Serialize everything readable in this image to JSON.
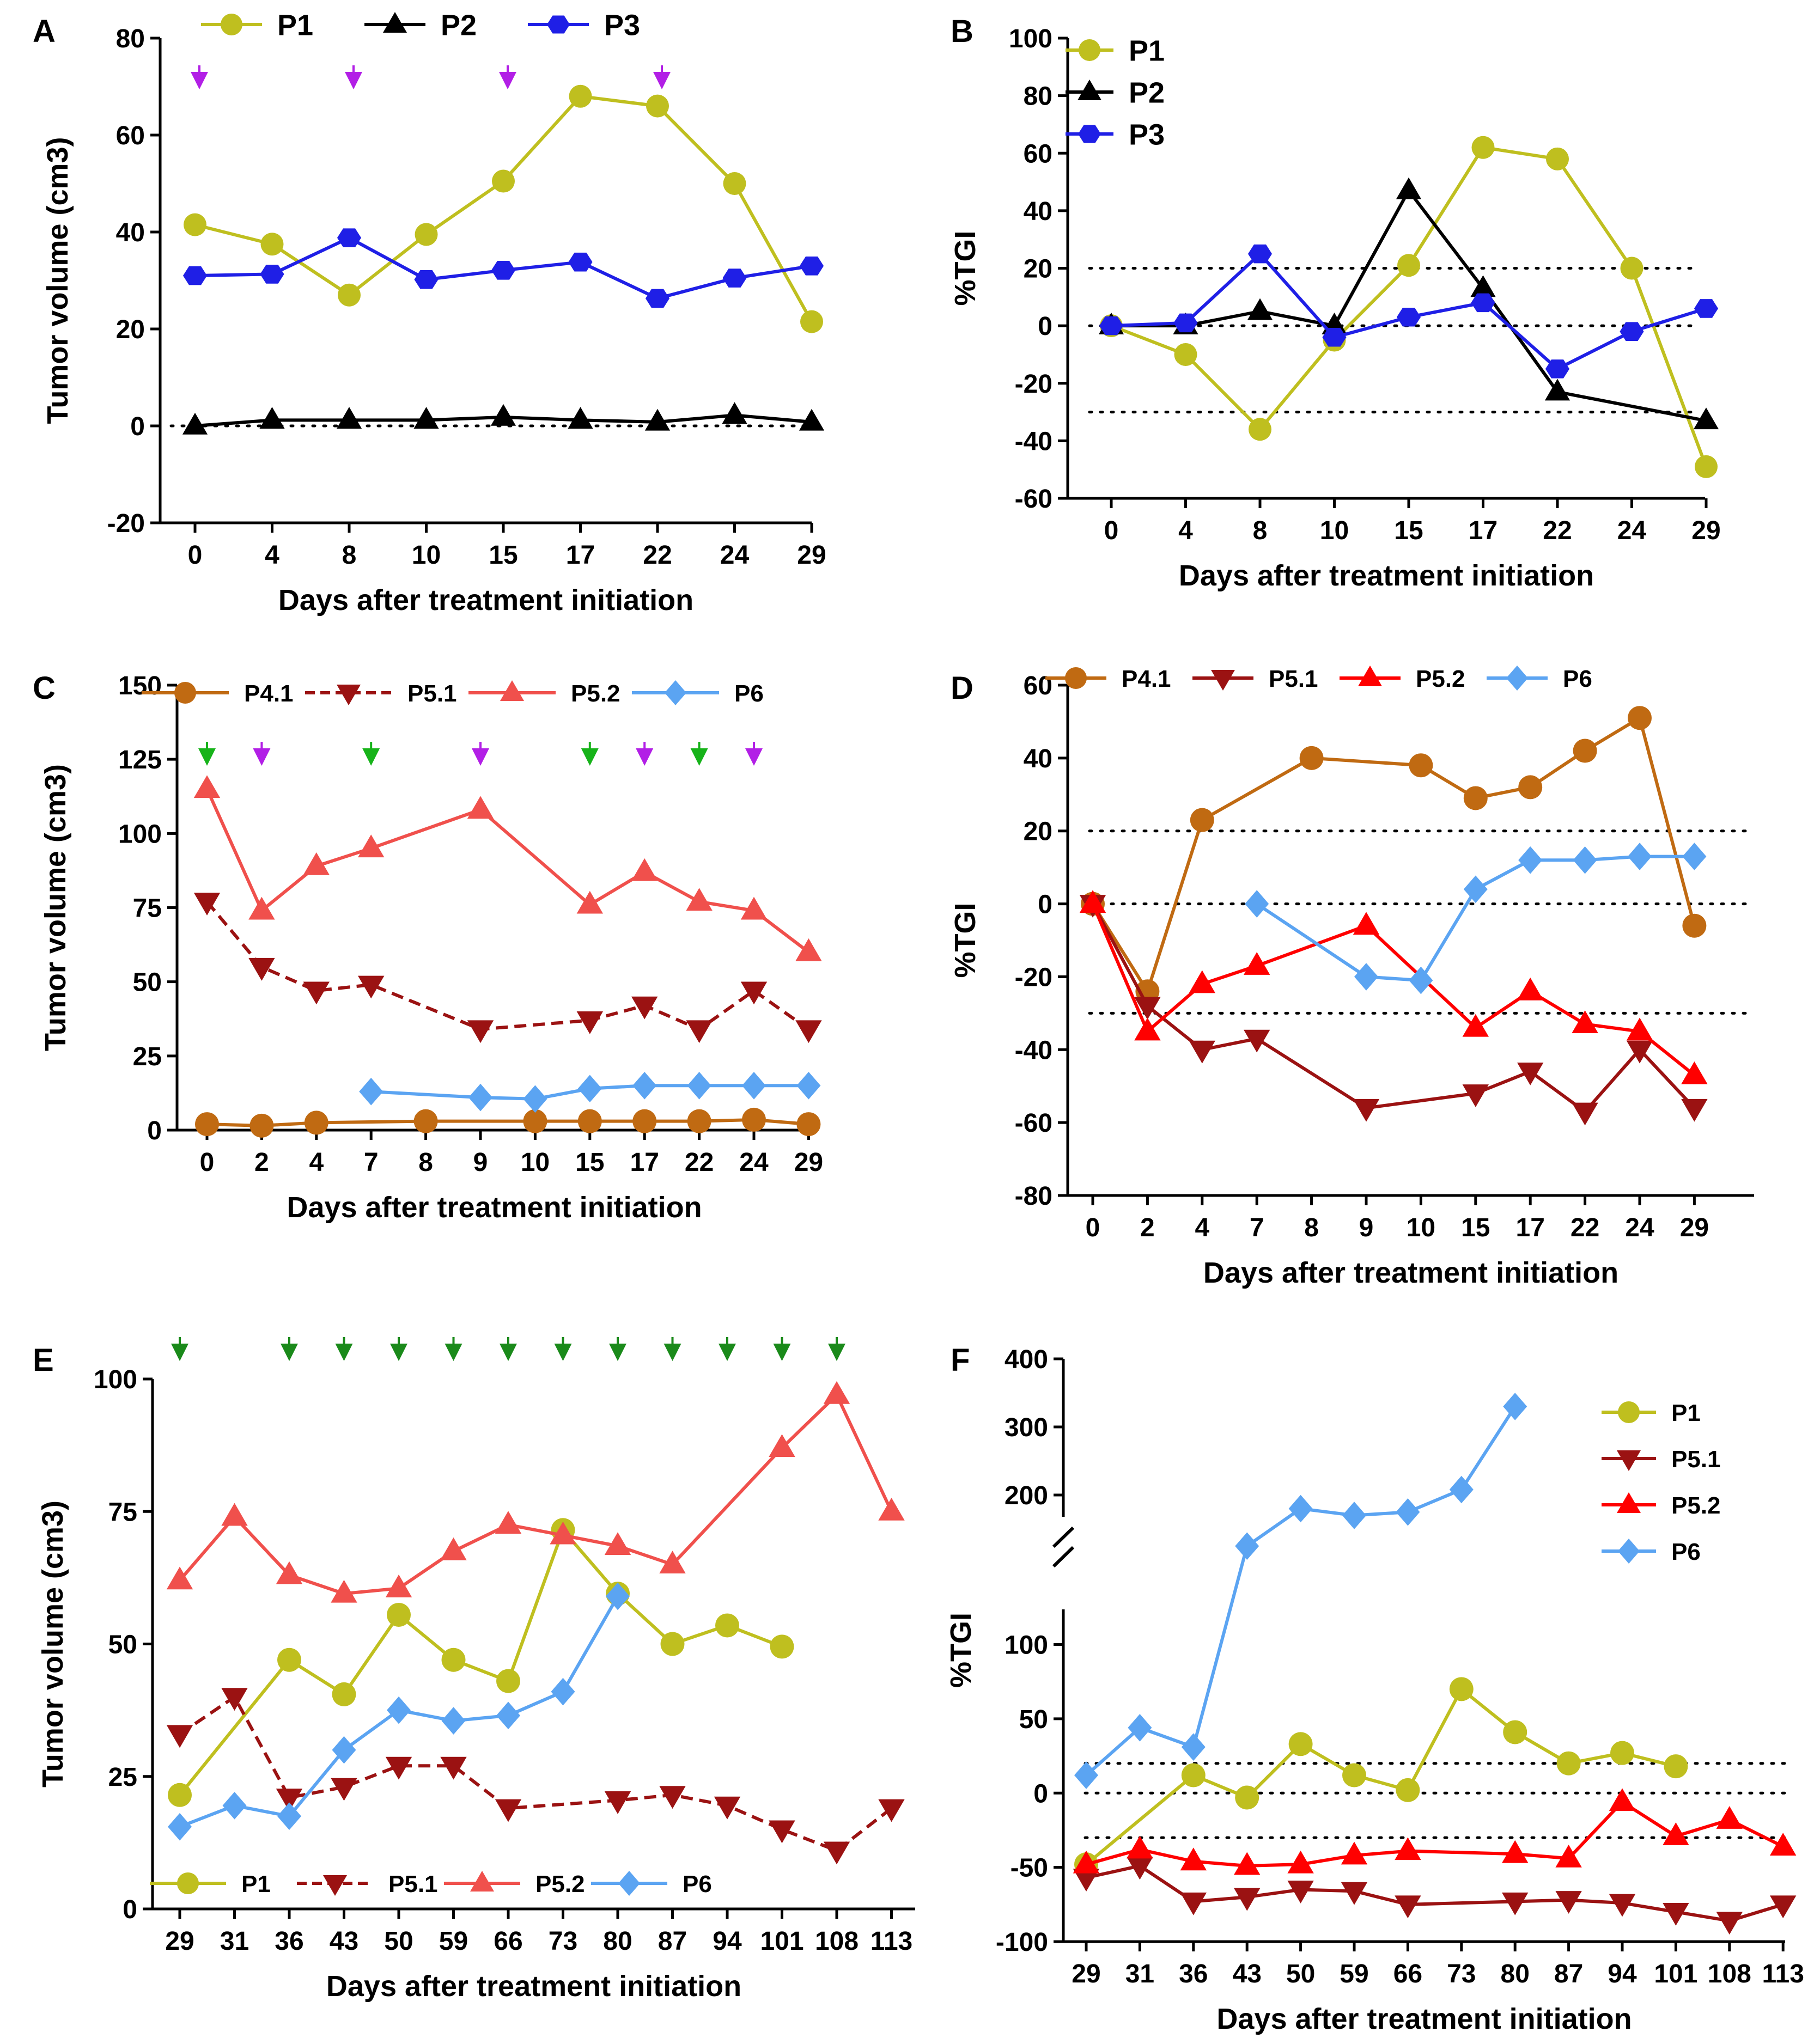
{
  "colors": {
    "P1": "#bfbf1f",
    "P2": "#000000",
    "P3": "#1f1fe6",
    "P4.1": "#c06a12",
    "P5.1": "#9b1212",
    "P5.2": "#f0504c",
    "P5.2_red": "#ff0000",
    "P6": "#5ba4f2",
    "arrow_purple": "#b21fe6",
    "arrow_green": "#17b31a",
    "arrow_darkgreen": "#1a8a1a"
  },
  "chart_data": [
    {
      "panel": "A",
      "type": "line",
      "ylabel": "Tumor volume (cm3)",
      "xlabel": "Days after treatment initiation",
      "categories": [
        "0",
        "4",
        "8",
        "10",
        "15",
        "17",
        "22",
        "24",
        "29"
      ],
      "ylim": [
        -20,
        80
      ],
      "yticks": [
        "-20",
        "0",
        "20",
        "40",
        "60",
        "80"
      ],
      "legend": "top",
      "reference_lines": [
        0
      ],
      "arrows": [
        {
          "category": "0",
          "color": "purple"
        },
        {
          "category": "8",
          "color": "purple"
        },
        {
          "category": "15",
          "color": "purple"
        },
        {
          "category": "22",
          "color": "purple"
        }
      ],
      "series": [
        {
          "name": "P1",
          "marker": "circle",
          "values": [
            41.5,
            37.5,
            27,
            39.5,
            50.5,
            68,
            66,
            50,
            21.5
          ]
        },
        {
          "name": "P2",
          "marker": "triangle",
          "values": [
            0,
            1.2,
            1.2,
            1.2,
            1.8,
            1.2,
            0.8,
            2.2,
            0.8
          ]
        },
        {
          "name": "P3",
          "marker": "hexagon",
          "values": [
            31,
            31.3,
            38.8,
            30.2,
            32.1,
            33.8,
            26.3,
            30.5,
            33
          ]
        }
      ]
    },
    {
      "panel": "B",
      "type": "line",
      "ylabel": "%TGI",
      "xlabel": "Days after treatment initiation",
      "categories": [
        "0",
        "4",
        "8",
        "10",
        "15",
        "17",
        "22",
        "24",
        "29"
      ],
      "ylim": [
        -60,
        100
      ],
      "yticks": [
        "-60",
        "-40",
        "-20",
        "0",
        "20",
        "40",
        "60",
        "80",
        "100"
      ],
      "legend": "top-left",
      "reference_lines": [
        20,
        0,
        -30
      ],
      "series": [
        {
          "name": "P1",
          "marker": "circle",
          "values": [
            0,
            -10,
            -36,
            -5,
            21,
            62,
            58,
            20,
            -49
          ]
        },
        {
          "name": "P2",
          "marker": "triangle",
          "values": [
            0,
            0,
            5,
            0,
            47,
            13,
            -23,
            null,
            -33
          ]
        },
        {
          "name": "P3",
          "marker": "hexagon",
          "values": [
            0,
            1,
            25,
            -4,
            3,
            8,
            -15,
            -2,
            6
          ]
        }
      ]
    },
    {
      "panel": "C",
      "type": "line",
      "ylabel": "Tumor volume (cm3)",
      "xlabel": "Days after treatment initiation",
      "categories": [
        "0",
        "2",
        "4",
        "7",
        "8",
        "9",
        "10",
        "15",
        "17",
        "22",
        "24",
        "29"
      ],
      "ylim": [
        0,
        150
      ],
      "yticks": [
        "0",
        "25",
        "50",
        "75",
        "100",
        "125",
        "150"
      ],
      "legend": "top",
      "reference_lines": [
        0
      ],
      "arrows": [
        {
          "category": "0",
          "color": "green"
        },
        {
          "category": "2",
          "color": "purple"
        },
        {
          "category": "7",
          "color": "green"
        },
        {
          "category": "9",
          "color": "purple"
        },
        {
          "category": "15",
          "color": "green"
        },
        {
          "category": "17",
          "color": "purple"
        },
        {
          "category": "22",
          "color": "green"
        },
        {
          "category": "24",
          "color": "purple"
        }
      ],
      "series": [
        {
          "name": "P4.1",
          "marker": "circle",
          "values": [
            2,
            1.5,
            2.5,
            null,
            3,
            null,
            3,
            3,
            3,
            3,
            3.5,
            2
          ]
        },
        {
          "name": "P5.1",
          "marker": "triangle-down",
          "dashed": true,
          "values": [
            77,
            55,
            47,
            49,
            null,
            34,
            null,
            37,
            42,
            34,
            47,
            34
          ]
        },
        {
          "name": "P5.2",
          "marker": "triangle",
          "values": [
            115,
            74,
            89,
            95,
            null,
            108,
            null,
            76,
            87,
            77,
            74,
            60
          ]
        },
        {
          "name": "P6",
          "marker": "diamond",
          "values": [
            null,
            null,
            null,
            13,
            null,
            11,
            10.5,
            14,
            15,
            15,
            15,
            15
          ]
        }
      ]
    },
    {
      "panel": "D",
      "type": "line",
      "ylabel": "%TGI",
      "xlabel": "Days after treatment initiation",
      "categories": [
        "0",
        "2",
        "4",
        "7",
        "8",
        "9",
        "10",
        "15",
        "17",
        "22",
        "24",
        "29"
      ],
      "ylim": [
        -80,
        60
      ],
      "yticks": [
        "-80",
        "-60",
        "-40",
        "-20",
        "0",
        "20",
        "40",
        "60"
      ],
      "legend": "top",
      "reference_lines": [
        20,
        0,
        -30
      ],
      "series": [
        {
          "name": "P4.1",
          "marker": "circle",
          "values": [
            0,
            -24,
            23,
            null,
            40,
            null,
            38,
            29,
            32,
            42,
            51,
            -6
          ]
        },
        {
          "name": "P5.1",
          "marker": "triangle-down",
          "values": [
            0,
            -28,
            -40,
            -37,
            null,
            -56,
            null,
            -52,
            -46,
            -57,
            -40,
            -56
          ]
        },
        {
          "name": "P5.2",
          "marker": "triangle",
          "values": [
            0,
            -35,
            -22,
            -17,
            null,
            -6,
            null,
            -34,
            -24,
            -33,
            -35,
            -47
          ]
        },
        {
          "name": "P6",
          "marker": "diamond",
          "values": [
            null,
            null,
            null,
            0,
            null,
            -20,
            -21,
            4,
            12,
            12,
            13,
            13
          ]
        }
      ]
    },
    {
      "panel": "E",
      "type": "line",
      "ylabel": "Tumor volume (cm3)",
      "xlabel": "Days after treatment initiation",
      "categories": [
        "29",
        "31",
        "36",
        "43",
        "50",
        "59",
        "66",
        "73",
        "80",
        "87",
        "94",
        "101",
        "108",
        "113"
      ],
      "ylim": [
        0,
        100
      ],
      "yticks": [
        "0",
        "25",
        "50",
        "75",
        "100"
      ],
      "legend": "bottom",
      "arrows": [
        {
          "category": "29",
          "color": "darkgreen"
        },
        {
          "category": "36",
          "color": "darkgreen"
        },
        {
          "category": "43",
          "color": "darkgreen"
        },
        {
          "category": "50",
          "color": "darkgreen"
        },
        {
          "category": "59",
          "color": "darkgreen"
        },
        {
          "category": "66",
          "color": "darkgreen"
        },
        {
          "category": "73",
          "color": "darkgreen"
        },
        {
          "category": "80",
          "color": "darkgreen"
        },
        {
          "category": "87",
          "color": "darkgreen"
        },
        {
          "category": "94",
          "color": "darkgreen"
        },
        {
          "category": "101",
          "color": "darkgreen"
        },
        {
          "category": "108",
          "color": "darkgreen"
        }
      ],
      "series": [
        {
          "name": "P1",
          "marker": "circle",
          "values": [
            21.5,
            null,
            47,
            40.5,
            55.5,
            47,
            43,
            71.5,
            59.5,
            50,
            53.5,
            49.5,
            null,
            null
          ]
        },
        {
          "name": "P5.1",
          "marker": "triangle-down",
          "dashed": true,
          "values": [
            33,
            40,
            21,
            23,
            27,
            27,
            19,
            null,
            20.5,
            21.5,
            19.5,
            15,
            11,
            19
          ]
        },
        {
          "name": "P5.2",
          "marker": "triangle",
          "values": [
            62,
            74,
            63,
            59.5,
            60.5,
            67.5,
            72.5,
            70.5,
            68.5,
            65,
            null,
            87,
            97,
            75
          ]
        },
        {
          "name": "P6",
          "marker": "diamond",
          "values": [
            15.5,
            19.5,
            17.5,
            30,
            37.5,
            35.5,
            36.5,
            41,
            59,
            null,
            null,
            null,
            null,
            null
          ]
        }
      ]
    },
    {
      "panel": "F",
      "type": "line",
      "ylabel": "%TGI",
      "xlabel": "Days after treatment initiation",
      "categories": [
        "29",
        "31",
        "36",
        "43",
        "50",
        "59",
        "66",
        "73",
        "80",
        "87",
        "94",
        "101",
        "108",
        "113"
      ],
      "ylim": [
        -100,
        400
      ],
      "axis_break": [
        120,
        180
      ],
      "yticks": [
        "-100",
        "-50",
        "0",
        "50",
        "100",
        "200",
        "300",
        "400"
      ],
      "legend": "right",
      "reference_lines": [
        20,
        0,
        -30
      ],
      "series": [
        {
          "name": "P1",
          "marker": "circle",
          "values": [
            -48,
            null,
            12,
            -3,
            33,
            12,
            2,
            70,
            41,
            20,
            27,
            18,
            null,
            null
          ]
        },
        {
          "name": "P5.1",
          "marker": "triangle-down",
          "values": [
            -57,
            -49,
            -73,
            -70,
            -65,
            -66,
            -75,
            null,
            -73,
            -72,
            -74,
            -80,
            -86,
            -75
          ]
        },
        {
          "name": "P5.2",
          "marker": "triangle",
          "values": [
            -48,
            -38,
            -46,
            -49,
            -48,
            -42,
            -39,
            null,
            -41,
            -44,
            -6,
            -29,
            -18,
            -36
          ]
        },
        {
          "name": "P6",
          "marker": "diamond",
          "values": [
            12,
            44,
            31,
            125,
            180,
            170,
            175,
            208,
            330,
            null,
            null,
            null,
            null,
            null
          ]
        }
      ]
    }
  ]
}
